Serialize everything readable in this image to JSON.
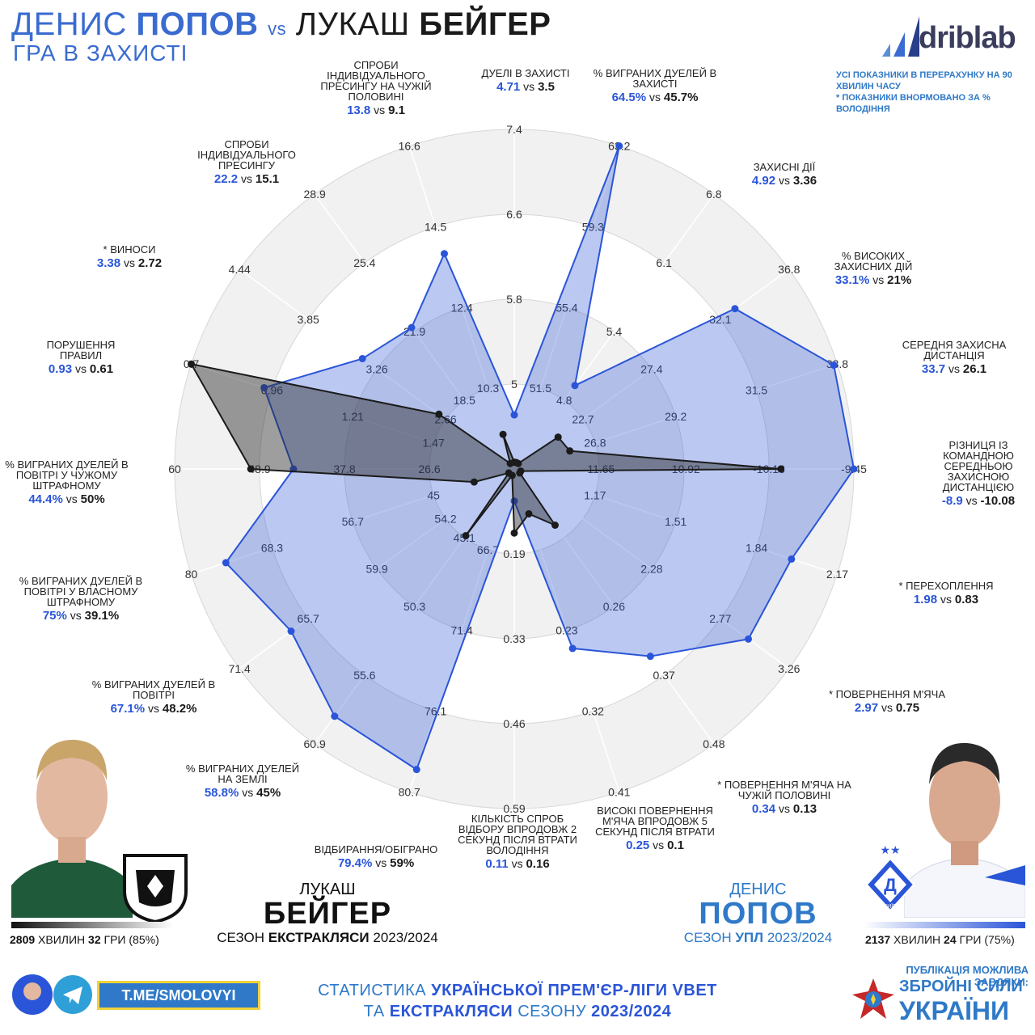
{
  "header": {
    "title_left_first": "ДЕНИС",
    "title_left_last": "ПОПОВ",
    "title_vs": "vs",
    "title_right_first": "ЛУКАШ",
    "title_right_last": "БЕЙГЕР",
    "subtitle": "ГРА В ЗАХИСТІ",
    "brand": "driblab",
    "note_line1": "УСІ ПОКАЗНИКИ В ПЕРЕРАХУНКУ НА 90 ХВИЛИН ЧАСУ",
    "note_line2": "* ПОКАЗНИКИ ВНОРМОВАНО ЗА % ВОЛОДІННЯ"
  },
  "colors": {
    "popov": "#2a55d8",
    "beiger": "#1b1b1b",
    "accent": "#2f79c8"
  },
  "chart_data": {
    "type": "radar",
    "series": [
      {
        "name": "Денис Попов",
        "values": [
          4.71,
          64.5,
          4.92,
          33.1,
          33.7,
          -8.9,
          1.98,
          2.97,
          0.34,
          0.25,
          0.11,
          79.4,
          58.8,
          67.1,
          75,
          44.4,
          0.93,
          3.38,
          22.2,
          13.8
        ]
      },
      {
        "name": "Лукаш Бейгер",
        "values": [
          3.5,
          45.7,
          3.36,
          21,
          26.1,
          -10.08,
          0.83,
          0.75,
          0.13,
          0.1,
          0.16,
          59,
          45,
          48.2,
          39.1,
          50,
          0.61,
          2.72,
          15.1,
          9.1
        ]
      }
    ],
    "axes": [
      {
        "label": "ДУЕЛІ В ЗАХИСТІ",
        "ticks": [
          "5",
          "5.8",
          "6.6",
          "7.4"
        ],
        "range": [
          4.2,
          7.4
        ]
      },
      {
        "label": "% ВИГРАНИХ ДУЕЛЕЙ В ЗАХИСТІ",
        "ticks": [
          "51.5",
          "55.4",
          "59.3",
          "63.2"
        ],
        "range": [
          47.6,
          63.2
        ]
      },
      {
        "label": "ЗАХИСНІ ДІЇ",
        "ticks": [
          "4.8",
          "5.4",
          "6.1",
          "6.8"
        ],
        "range": [
          4.1,
          6.8
        ]
      },
      {
        "label": "% ВИСОКИХ ЗАХИСНИХ ДІЙ",
        "ticks": [
          "22.7",
          "27.4",
          "32.1",
          "36.8"
        ],
        "range": [
          18.0,
          36.8
        ]
      },
      {
        "label": "СЕРЕДНЯ ЗАХИСНА ДИСТАНЦІЯ",
        "ticks": [
          "26.8",
          "29.2",
          "31.5",
          "33.8"
        ],
        "range": [
          24.5,
          33.8
        ]
      },
      {
        "label": "РІЗНИЦЯ ІЗ КОМАНДНОЮ СЕРЕДНЬОЮ ЗАХИСНОЮ ДИСТАНЦІЄЮ",
        "ticks": [
          "-11.65",
          "-10.92",
          "-10.18",
          "-9.45"
        ],
        "range": [
          -12.38,
          -9.45
        ]
      },
      {
        "label": "* ПЕРЕХОПЛЕННЯ",
        "ticks": [
          "1.17",
          "1.51",
          "1.84",
          "2.17"
        ],
        "range": [
          0.83,
          2.17
        ]
      },
      {
        "label": "* ПОВЕРНЕННЯ М'ЯЧА",
        "ticks": [
          "2.28",
          "2.77",
          "3.26"
        ],
        "range": [
          1.3,
          3.26
        ]
      },
      {
        "label": "* ПОВЕРНЕННЯ М'ЯЧА НА ЧУЖІЙ ПОЛОВИНІ",
        "ticks": [
          "0.26",
          "0.37",
          "0.48"
        ],
        "range": [
          0.04,
          0.48
        ]
      },
      {
        "label": "ВИСОКІ ПОВЕРНЕННЯ М'ЯЧА ВПРОДОВЖ 5 СЕКУНД ПІСЛЯ ВТРАТИ",
        "ticks": [
          "0.23",
          "0.32",
          "0.41"
        ],
        "range": [
          0.05,
          0.41
        ]
      },
      {
        "label": "КІЛЬКІСТЬ СПРОБ ВІДБОРУ ВПРОДОВЖ 2 СЕКУНД ПІСЛЯ ВТРАТИ ВОЛОДІННЯ",
        "ticks": [
          "0.19",
          "0.33",
          "0.46",
          "0.59"
        ],
        "range": [
          0.06,
          0.59
        ]
      },
      {
        "label": "ВІДБИРАННЯ/ОБІГРАНО",
        "ticks": [
          "66.7",
          "71.4",
          "76.1",
          "80.7"
        ],
        "range": [
          62.0,
          80.7
        ]
      },
      {
        "label": "% ВИГРАНИХ ДУЕЛЕЙ НА ЗЕМЛІ",
        "ticks": [
          "45.1",
          "50.3",
          "55.6",
          "60.9"
        ],
        "range": [
          39.9,
          60.9
        ]
      },
      {
        "label": "% ВИГРАНИХ ДУЕЛЕЙ В ПОВІТРІ",
        "ticks": [
          "54.2",
          "59.9",
          "65.7",
          "71.4"
        ],
        "range": [
          48.5,
          71.4
        ]
      },
      {
        "label": "% ВИГРАНИХ ДУЕЛЕЙ В ПОВІТРІ У ВЛАСНОМУ ШТРАФНОМУ",
        "ticks": [
          "45",
          "56.7",
          "68.3",
          "80"
        ],
        "range": [
          33.3,
          80
        ]
      },
      {
        "label": "% ВИГРАНИХ ДУЕЛЕЙ В ПОВІТРІ У ЧУЖОМУ ШТРАФНОМУ",
        "ticks": [
          "26.6",
          "37.8",
          "48.9",
          "60"
        ],
        "range": [
          15.4,
          60
        ]
      },
      {
        "label": "ПОРУШЕННЯ ПРАВИЛ",
        "ticks": [
          "1.47",
          "1.21",
          "0.96",
          "0.7"
        ],
        "range": [
          1.72,
          0.7
        ]
      },
      {
        "label": "* ВИНОСИ",
        "ticks": [
          "2.66",
          "3.26",
          "3.85",
          "4.44"
        ],
        "range": [
          2.07,
          4.44
        ]
      },
      {
        "label": "СПРОБИ ІНДИВІДУАЛЬНОГО ПРЕСИНГУ",
        "ticks": [
          "18.5",
          "21.9",
          "25.4",
          "28.9"
        ],
        "range": [
          15.1,
          28.9
        ]
      },
      {
        "label": "СПРОБИ ІНДИВІДУАЛЬНОГО ПРЕСИНГУ НА ЧУЖІЙ ПОЛОВИНІ",
        "ticks": [
          "10.3",
          "12.4",
          "14.5",
          "16.6"
        ],
        "range": [
          8.2,
          16.6
        ]
      }
    ],
    "title": "Гра в захисті",
    "grid": true
  },
  "metric_labels": [
    {
      "label": "ДУЕЛІ В ЗАХИСТІ",
      "a": "4.71",
      "b": "3.5"
    },
    {
      "label": "% ВИГРАНИХ ДУЕЛЕЙ В ЗАХИСТІ",
      "a": "64.5%",
      "b": "45.7%"
    },
    {
      "label": "ЗАХИСНІ ДІЇ",
      "a": "4.92",
      "b": "3.36"
    },
    {
      "label": "% ВИСОКИХ ЗАХИСНИХ ДІЙ",
      "a": "33.1%",
      "b": "21%"
    },
    {
      "label": "СЕРЕДНЯ ЗАХИСНА ДИСТАНЦІЯ",
      "a": "33.7",
      "b": "26.1"
    },
    {
      "label": "РІЗНИЦЯ ІЗ КОМАНДНОЮ СЕРЕДНЬОЮ ЗАХИСНОЮ ДИСТАНЦІЄЮ",
      "a": "-8.9",
      "b": "-10.08"
    },
    {
      "label": "* ПЕРЕХОПЛЕННЯ",
      "a": "1.98",
      "b": "0.83"
    },
    {
      "label": "* ПОВЕРНЕННЯ М'ЯЧА",
      "a": "2.97",
      "b": "0.75"
    },
    {
      "label": "* ПОВЕРНЕННЯ М'ЯЧА НА ЧУЖІЙ ПОЛОВИНІ",
      "a": "0.34",
      "b": "0.13"
    },
    {
      "label": "ВИСОКІ ПОВЕРНЕННЯ М'ЯЧА ВПРОДОВЖ 5 СЕКУНД ПІСЛЯ ВТРАТИ",
      "a": "0.25",
      "b": "0.1"
    },
    {
      "label": "КІЛЬКІСТЬ СПРОБ ВІДБОРУ ВПРОДОВЖ 2 СЕКУНД ПІСЛЯ ВТРАТИ ВОЛОДІННЯ",
      "a": "0.11",
      "b": "0.16"
    },
    {
      "label": "ВІДБИРАННЯ/ОБІГРАНО",
      "a": "79.4%",
      "b": "59%"
    },
    {
      "label": "% ВИГРАНИХ ДУЕЛЕЙ НА ЗЕМЛІ",
      "a": "58.8%",
      "b": "45%"
    },
    {
      "label": "% ВИГРАНИХ ДУЕЛЕЙ В ПОВІТРІ",
      "a": "67.1%",
      "b": "48.2%"
    },
    {
      "label": "% ВИГРАНИХ ДУЕЛЕЙ В ПОВІТРІ У ВЛАСНОМУ ШТРАФНОМУ",
      "a": "75%",
      "b": "39.1%"
    },
    {
      "label": "% ВИГРАНИХ ДУЕЛЕЙ В ПОВІТРІ У ЧУЖОМУ ШТРАФНОМУ",
      "a": "44.4%",
      "b": "50%"
    },
    {
      "label": "ПОРУШЕННЯ ПРАВИЛ",
      "a": "0.93",
      "b": "0.61"
    },
    {
      "label": "*  ВИНОСИ",
      "a": "3.38",
      "b": "2.72"
    },
    {
      "label": "СПРОБИ ІНДИВІДУАЛЬНОГО ПРЕСИНГУ",
      "a": "22.2",
      "b": "15.1"
    },
    {
      "label": "СПРОБИ ІНДИВІДУАЛЬНОГО ПРЕСИНГУ НА ЧУЖІЙ ПОЛОВИНІ",
      "a": "13.8",
      "b": "9.1"
    }
  ],
  "vs_word": "vs",
  "left_player": {
    "first": "ЛУКАШ",
    "last": "БЕЙГЕР",
    "season_prefix": "СЕЗОН",
    "season_league": "ЕКСТРАКЛЯСИ",
    "season_year": "2023/2024",
    "minutes": "2809",
    "minutes_label": "ХВИЛИН",
    "games": "32",
    "games_label": "ГРИ",
    "pct": "(85%)"
  },
  "right_player": {
    "first": "ДЕНИС",
    "last": "ПОПОВ",
    "season_prefix": "СЕЗОН",
    "season_league": "УПЛ",
    "season_year": "2023/2024",
    "minutes": "2137",
    "minutes_label": "ХВИЛИН",
    "games": "24",
    "games_label": "ГРИ",
    "pct": "(75%)",
    "club_badge_text": "КИЇВ"
  },
  "footer": {
    "telegram": "T.ME/SMOLOVYI",
    "line1_a": "СТАТИСТИКА",
    "line1_b": "УКРАЇНСЬКОЇ ПРЕМ'ЄР-ЛІГИ VBET",
    "line2_a": "ТА",
    "line2_b": "ЕКСТРАКЛЯСИ",
    "line2_c": "СЕЗОНУ",
    "line2_d": "2023/2024",
    "publication": "ПУБЛІКАЦІЯ МОЖЛИВА ЗАВДЯКИ:",
    "zsu_line1": "ЗБРОЙНІ СИЛИ",
    "zsu_line2": "УКРАЇНИ"
  }
}
